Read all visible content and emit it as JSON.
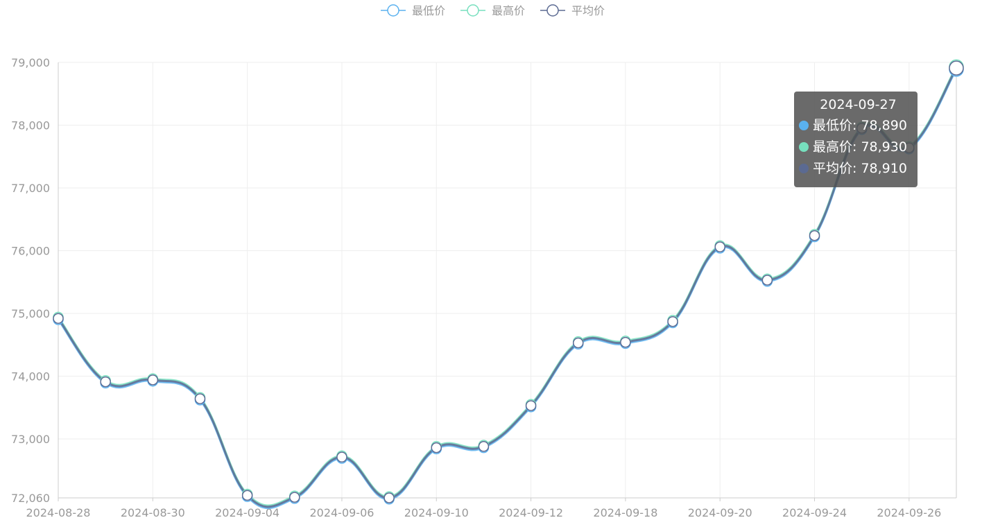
{
  "chart_data": {
    "type": "line",
    "smooth": true,
    "grid": true,
    "legend_position": "top",
    "categories": [
      "2024-08-28",
      null,
      "2024-08-30",
      null,
      "2024-09-04",
      null,
      "2024-09-06",
      null,
      "2024-09-10",
      null,
      "2024-09-12",
      null,
      "2024-09-18",
      null,
      "2024-09-20",
      null,
      "2024-09-24",
      null,
      "2024-09-26",
      null
    ],
    "series": [
      {
        "name": "最低价",
        "color": "#5ab1ef",
        "values": [
          74900,
          73890,
          73920,
          73620,
          72080,
          72050,
          72690,
          72040,
          72840,
          72860,
          73510,
          74510,
          74520,
          74850,
          76040,
          75510,
          76220,
          77930,
          77620,
          78890
        ]
      },
      {
        "name": "最高价",
        "color": "#77dfbe",
        "values": [
          74940,
          73930,
          73960,
          73660,
          72120,
          72090,
          72730,
          72080,
          72880,
          72900,
          73550,
          74550,
          74560,
          74890,
          76080,
          75550,
          76260,
          77970,
          77660,
          78930
        ]
      },
      {
        "name": "平均价",
        "color": "#5b6a92",
        "values": [
          74920,
          73910,
          73940,
          73640,
          72100,
          72070,
          72710,
          72060,
          72860,
          72880,
          73530,
          74530,
          74540,
          74870,
          76060,
          75530,
          76240,
          77950,
          77640,
          78910
        ]
      }
    ],
    "ylim": [
      72060,
      79000
    ],
    "yticks": [
      {
        "value": 72060,
        "label": "72,060"
      },
      {
        "value": 73000,
        "label": "73,000"
      },
      {
        "value": 74000,
        "label": "74,000"
      },
      {
        "value": 75000,
        "label": "75,000"
      },
      {
        "value": 76000,
        "label": "76,000"
      },
      {
        "value": 77000,
        "label": "77,000"
      },
      {
        "value": 78000,
        "label": "78,000"
      },
      {
        "value": 79000,
        "label": "79,000"
      }
    ],
    "tooltip": {
      "title": "2024-09-27",
      "rows": [
        "最低价: 78,890",
        "最高价: 78,930",
        "平均价: 78,910"
      ]
    }
  }
}
